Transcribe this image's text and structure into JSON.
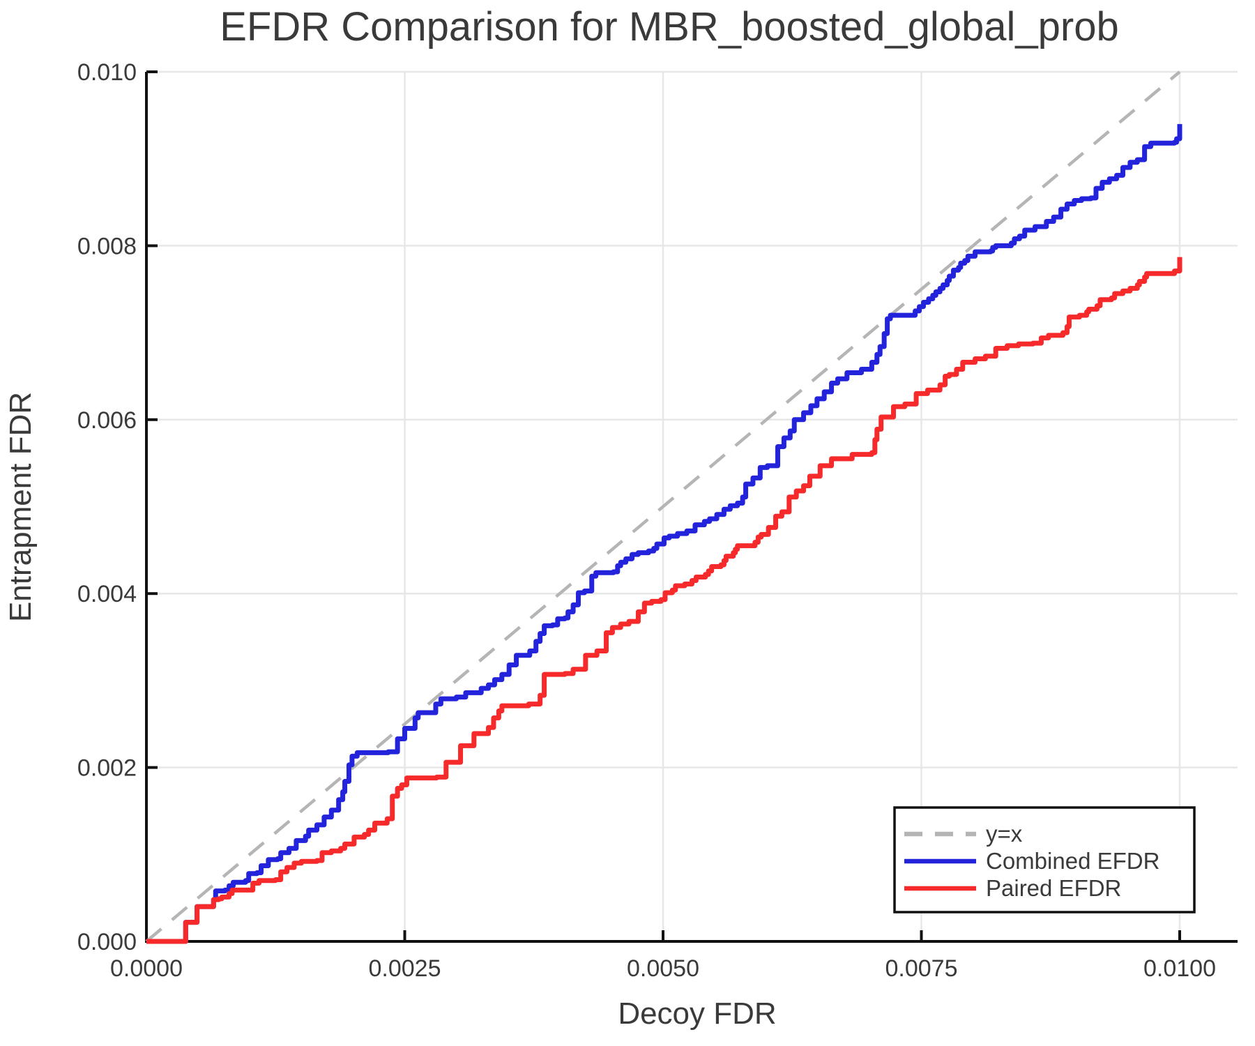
{
  "title": "EFDR Comparison for MBR_boosted_global_prob",
  "axes": {
    "xlabel": "Decoy FDR",
    "ylabel": "Entrapment FDR"
  },
  "colors": {
    "background": "#ffffff",
    "spine": "#111111",
    "grid": "#e7e7e7",
    "text": "#3a3a3a",
    "diagonal": "#b5b5b5",
    "combined": "#2323dc",
    "paired": "#f62a2a",
    "legend_border": "#111111",
    "legend_fill": "#ffffff"
  },
  "legend": {
    "position": "lower right",
    "entries": [
      {
        "label": "y=x",
        "color": "#b5b5b5",
        "dashed": true
      },
      {
        "label": "Combined EFDR",
        "color": "#2323dc",
        "dashed": false
      },
      {
        "label": "Paired EFDR",
        "color": "#f62a2a",
        "dashed": false
      }
    ]
  },
  "chart_data": {
    "type": "line",
    "xlabel": "Decoy FDR",
    "ylabel": "Entrapment FDR",
    "xlim": [
      0,
      0.01
    ],
    "ylim": [
      0,
      0.01
    ],
    "grid": true,
    "x_ticks": {
      "values": [
        0,
        0.0025,
        0.005,
        0.0075,
        0.01
      ],
      "labels": [
        "0.0000",
        "0.0025",
        "0.0050",
        "0.0075",
        "0.0100"
      ]
    },
    "y_ticks": {
      "values": [
        0,
        0.002,
        0.004,
        0.006,
        0.008,
        0.01
      ],
      "labels": [
        "0.000",
        "0.002",
        "0.004",
        "0.006",
        "0.008",
        "0.010"
      ]
    },
    "series": [
      {
        "name": "y=x",
        "color": "#b5b5b5",
        "dashed": true,
        "step": false,
        "width": 4.5,
        "points": [
          [
            0,
            0
          ],
          [
            0.01,
            0.01
          ]
        ]
      },
      {
        "name": "Combined EFDR",
        "color": "#2323dc",
        "dashed": false,
        "step": true,
        "width": 7,
        "points": [
          [
            0,
            0
          ],
          [
            0.00038,
            0
          ],
          [
            0.00038,
            0.00022
          ],
          [
            0.00049,
            0.00022
          ],
          [
            0.00049,
            0.0004
          ],
          [
            0.00063,
            0.0004
          ],
          [
            0.00065,
            0.00048
          ],
          [
            0.00067,
            0.00058
          ],
          [
            0.00076,
            0.00059
          ],
          [
            0.0008,
            0.00064
          ],
          [
            0.00084,
            0.00068
          ],
          [
            0.00096,
            0.0007
          ],
          [
            0.00099,
            0.00078
          ],
          [
            0.00107,
            0.00079
          ],
          [
            0.00111,
            0.00087
          ],
          [
            0.00118,
            0.00094
          ],
          [
            0.00127,
            0.00095
          ],
          [
            0.0013,
            0.00102
          ],
          [
            0.00138,
            0.00107
          ],
          [
            0.00145,
            0.00116
          ],
          [
            0.00154,
            0.00121
          ],
          [
            0.00157,
            0.00128
          ],
          [
            0.00165,
            0.00134
          ],
          [
            0.00172,
            0.00143
          ],
          [
            0.00179,
            0.00151
          ],
          [
            0.00186,
            0.00163
          ],
          [
            0.0019,
            0.00172
          ],
          [
            0.00192,
            0.00184
          ],
          [
            0.00196,
            0.00203
          ],
          [
            0.00199,
            0.00213
          ],
          [
            0.00204,
            0.00217
          ],
          [
            0.00234,
            0.00218
          ],
          [
            0.00243,
            0.00233
          ],
          [
            0.0025,
            0.00245
          ],
          [
            0.0026,
            0.00257
          ],
          [
            0.00263,
            0.00263
          ],
          [
            0.0028,
            0.00273
          ],
          [
            0.00285,
            0.00279
          ],
          [
            0.003,
            0.00281
          ],
          [
            0.00309,
            0.00286
          ],
          [
            0.00324,
            0.00291
          ],
          [
            0.00331,
            0.00295
          ],
          [
            0.00337,
            0.00301
          ],
          [
            0.00344,
            0.00307
          ],
          [
            0.00351,
            0.00318
          ],
          [
            0.00358,
            0.00329
          ],
          [
            0.00371,
            0.00334
          ],
          [
            0.00377,
            0.00345
          ],
          [
            0.00381,
            0.00354
          ],
          [
            0.00385,
            0.00363
          ],
          [
            0.00393,
            0.00364
          ],
          [
            0.00398,
            0.00371
          ],
          [
            0.00405,
            0.00372
          ],
          [
            0.00408,
            0.00379
          ],
          [
            0.00413,
            0.00387
          ],
          [
            0.00418,
            0.00401
          ],
          [
            0.00424,
            0.00403
          ],
          [
            0.00431,
            0.0042
          ],
          [
            0.00435,
            0.00424
          ],
          [
            0.00452,
            0.00425
          ],
          [
            0.00456,
            0.00432
          ],
          [
            0.00459,
            0.00436
          ],
          [
            0.00464,
            0.0044
          ],
          [
            0.0047,
            0.00445
          ],
          [
            0.00476,
            0.00447
          ],
          [
            0.00486,
            0.00449
          ],
          [
            0.00491,
            0.00452
          ],
          [
            0.00494,
            0.00457
          ],
          [
            0.00501,
            0.00464
          ],
          [
            0.00506,
            0.00466
          ],
          [
            0.00514,
            0.00469
          ],
          [
            0.00523,
            0.00472
          ],
          [
            0.00531,
            0.00479
          ],
          [
            0.0054,
            0.00483
          ],
          [
            0.00545,
            0.00486
          ],
          [
            0.00552,
            0.00491
          ],
          [
            0.00559,
            0.00497
          ],
          [
            0.00565,
            0.00501
          ],
          [
            0.00572,
            0.00504
          ],
          [
            0.00577,
            0.00511
          ],
          [
            0.0058,
            0.00526
          ],
          [
            0.00587,
            0.00533
          ],
          [
            0.00594,
            0.00545
          ],
          [
            0.00601,
            0.00547
          ],
          [
            0.00611,
            0.00569
          ],
          [
            0.00617,
            0.00579
          ],
          [
            0.00623,
            0.00587
          ],
          [
            0.00627,
            0.006
          ],
          [
            0.00636,
            0.00608
          ],
          [
            0.00643,
            0.00616
          ],
          [
            0.00649,
            0.00624
          ],
          [
            0.00656,
            0.00632
          ],
          [
            0.00663,
            0.00642
          ],
          [
            0.00669,
            0.00647
          ],
          [
            0.00678,
            0.00654
          ],
          [
            0.00692,
            0.00658
          ],
          [
            0.00702,
            0.00666
          ],
          [
            0.00707,
            0.00675
          ],
          [
            0.0071,
            0.00684
          ],
          [
            0.00714,
            0.00699
          ],
          [
            0.00717,
            0.00716
          ],
          [
            0.0072,
            0.0072
          ],
          [
            0.0074,
            0.0072
          ],
          [
            0.00744,
            0.00725
          ],
          [
            0.00748,
            0.0073
          ],
          [
            0.00752,
            0.00735
          ],
          [
            0.00757,
            0.00739
          ],
          [
            0.00761,
            0.00743
          ],
          [
            0.00764,
            0.00747
          ],
          [
            0.00768,
            0.00751
          ],
          [
            0.00771,
            0.00755
          ],
          [
            0.00775,
            0.0076
          ],
          [
            0.00777,
            0.00765
          ],
          [
            0.00781,
            0.00772
          ],
          [
            0.00786,
            0.00775
          ],
          [
            0.00788,
            0.0078
          ],
          [
            0.00792,
            0.00783
          ],
          [
            0.00795,
            0.00788
          ],
          [
            0.00802,
            0.00793
          ],
          [
            0.00817,
            0.00794
          ],
          [
            0.00819,
            0.00798
          ],
          [
            0.00822,
            0.008
          ],
          [
            0.00837,
            0.00803
          ],
          [
            0.0084,
            0.00808
          ],
          [
            0.00845,
            0.00811
          ],
          [
            0.0085,
            0.00818
          ],
          [
            0.0086,
            0.00822
          ],
          [
            0.00871,
            0.00828
          ],
          [
            0.00878,
            0.00833
          ],
          [
            0.00885,
            0.00842
          ],
          [
            0.00891,
            0.00848
          ],
          [
            0.00898,
            0.00852
          ],
          [
            0.00905,
            0.00854
          ],
          [
            0.00914,
            0.00855
          ],
          [
            0.00919,
            0.00866
          ],
          [
            0.00925,
            0.00873
          ],
          [
            0.00932,
            0.00877
          ],
          [
            0.00939,
            0.00881
          ],
          [
            0.00945,
            0.0089
          ],
          [
            0.00952,
            0.00896
          ],
          [
            0.00959,
            0.00899
          ],
          [
            0.00966,
            0.00914
          ],
          [
            0.00972,
            0.00918
          ],
          [
            0.00995,
            0.00919
          ],
          [
            0.00997,
            0.00923
          ],
          [
            0.01,
            0.00925
          ],
          [
            0.01,
            0.0094
          ]
        ]
      },
      {
        "name": "Paired EFDR",
        "color": "#f62a2a",
        "dashed": false,
        "step": true,
        "width": 7,
        "points": [
          [
            0,
            0
          ],
          [
            0.00038,
            0
          ],
          [
            0.00038,
            0.00022
          ],
          [
            0.00049,
            0.00022
          ],
          [
            0.00049,
            0.0004
          ],
          [
            0.00063,
            0.0004
          ],
          [
            0.00065,
            0.00048
          ],
          [
            0.0007,
            0.00049
          ],
          [
            0.00073,
            0.00051
          ],
          [
            0.0008,
            0.00055
          ],
          [
            0.00083,
            0.00059
          ],
          [
            0.00096,
            0.00059
          ],
          [
            0.00103,
            0.00067
          ],
          [
            0.00109,
            0.0007
          ],
          [
            0.00125,
            0.00071
          ],
          [
            0.0013,
            0.0008
          ],
          [
            0.00136,
            0.00085
          ],
          [
            0.00143,
            0.0009
          ],
          [
            0.0015,
            0.00092
          ],
          [
            0.00165,
            0.00093
          ],
          [
            0.0017,
            0.00102
          ],
          [
            0.00179,
            0.00104
          ],
          [
            0.00188,
            0.00107
          ],
          [
            0.00192,
            0.00112
          ],
          [
            0.00201,
            0.0012
          ],
          [
            0.00211,
            0.00123
          ],
          [
            0.00215,
            0.00128
          ],
          [
            0.00221,
            0.00136
          ],
          [
            0.00233,
            0.00141
          ],
          [
            0.00238,
            0.00167
          ],
          [
            0.00243,
            0.00176
          ],
          [
            0.00247,
            0.0018
          ],
          [
            0.00252,
            0.00188
          ],
          [
            0.00281,
            0.00189
          ],
          [
            0.0029,
            0.00206
          ],
          [
            0.00304,
            0.00225
          ],
          [
            0.00317,
            0.00239
          ],
          [
            0.00331,
            0.00246
          ],
          [
            0.00336,
            0.00257
          ],
          [
            0.00341,
            0.00265
          ],
          [
            0.00344,
            0.00271
          ],
          [
            0.0037,
            0.00273
          ],
          [
            0.00381,
            0.00283
          ],
          [
            0.00385,
            0.00307
          ],
          [
            0.00405,
            0.00308
          ],
          [
            0.00413,
            0.00313
          ],
          [
            0.00425,
            0.00329
          ],
          [
            0.00436,
            0.00334
          ],
          [
            0.00445,
            0.00355
          ],
          [
            0.00451,
            0.00361
          ],
          [
            0.00459,
            0.00365
          ],
          [
            0.00467,
            0.00368
          ],
          [
            0.00476,
            0.00379
          ],
          [
            0.00482,
            0.00389
          ],
          [
            0.00489,
            0.00391
          ],
          [
            0.00498,
            0.00393
          ],
          [
            0.00502,
            0.00401
          ],
          [
            0.00509,
            0.00404
          ],
          [
            0.00512,
            0.00409
          ],
          [
            0.00521,
            0.00411
          ],
          [
            0.00528,
            0.00415
          ],
          [
            0.00532,
            0.00419
          ],
          [
            0.00541,
            0.00422
          ],
          [
            0.00544,
            0.00426
          ],
          [
            0.00547,
            0.00431
          ],
          [
            0.00556,
            0.00433
          ],
          [
            0.00559,
            0.00438
          ],
          [
            0.00561,
            0.00443
          ],
          [
            0.00568,
            0.00447
          ],
          [
            0.0057,
            0.00451
          ],
          [
            0.00572,
            0.00455
          ],
          [
            0.00589,
            0.00459
          ],
          [
            0.00592,
            0.00465
          ],
          [
            0.00595,
            0.00468
          ],
          [
            0.00602,
            0.00476
          ],
          [
            0.00609,
            0.00489
          ],
          [
            0.00615,
            0.00494
          ],
          [
            0.00622,
            0.00511
          ],
          [
            0.00629,
            0.00518
          ],
          [
            0.00636,
            0.00524
          ],
          [
            0.00642,
            0.00535
          ],
          [
            0.00652,
            0.00547
          ],
          [
            0.00663,
            0.00555
          ],
          [
            0.00683,
            0.0056
          ],
          [
            0.00702,
            0.00562
          ],
          [
            0.00705,
            0.00577
          ],
          [
            0.00707,
            0.00589
          ],
          [
            0.00711,
            0.00603
          ],
          [
            0.00723,
            0.00615
          ],
          [
            0.00734,
            0.00618
          ],
          [
            0.00745,
            0.0063
          ],
          [
            0.00756,
            0.00634
          ],
          [
            0.00768,
            0.0064
          ],
          [
            0.00773,
            0.0065
          ],
          [
            0.00777,
            0.00652
          ],
          [
            0.00784,
            0.00658
          ],
          [
            0.0079,
            0.00666
          ],
          [
            0.00802,
            0.0067
          ],
          [
            0.00812,
            0.00673
          ],
          [
            0.00822,
            0.00682
          ],
          [
            0.00833,
            0.00685
          ],
          [
            0.00844,
            0.00687
          ],
          [
            0.00858,
            0.00688
          ],
          [
            0.00866,
            0.00694
          ],
          [
            0.00873,
            0.00697
          ],
          [
            0.00887,
            0.007
          ],
          [
            0.00891,
            0.00707
          ],
          [
            0.00893,
            0.00718
          ],
          [
            0.00903,
            0.0072
          ],
          [
            0.0091,
            0.00724
          ],
          [
            0.00912,
            0.00727
          ],
          [
            0.0092,
            0.00731
          ],
          [
            0.00923,
            0.00738
          ],
          [
            0.00934,
            0.0074
          ],
          [
            0.00937,
            0.00745
          ],
          [
            0.00945,
            0.00748
          ],
          [
            0.00952,
            0.00751
          ],
          [
            0.00959,
            0.00755
          ],
          [
            0.00961,
            0.00759
          ],
          [
            0.00966,
            0.00764
          ],
          [
            0.00968,
            0.00768
          ],
          [
            0.00995,
            0.00771
          ],
          [
            0.01,
            0.00773
          ],
          [
            0.01,
            0.00787
          ]
        ]
      }
    ]
  }
}
